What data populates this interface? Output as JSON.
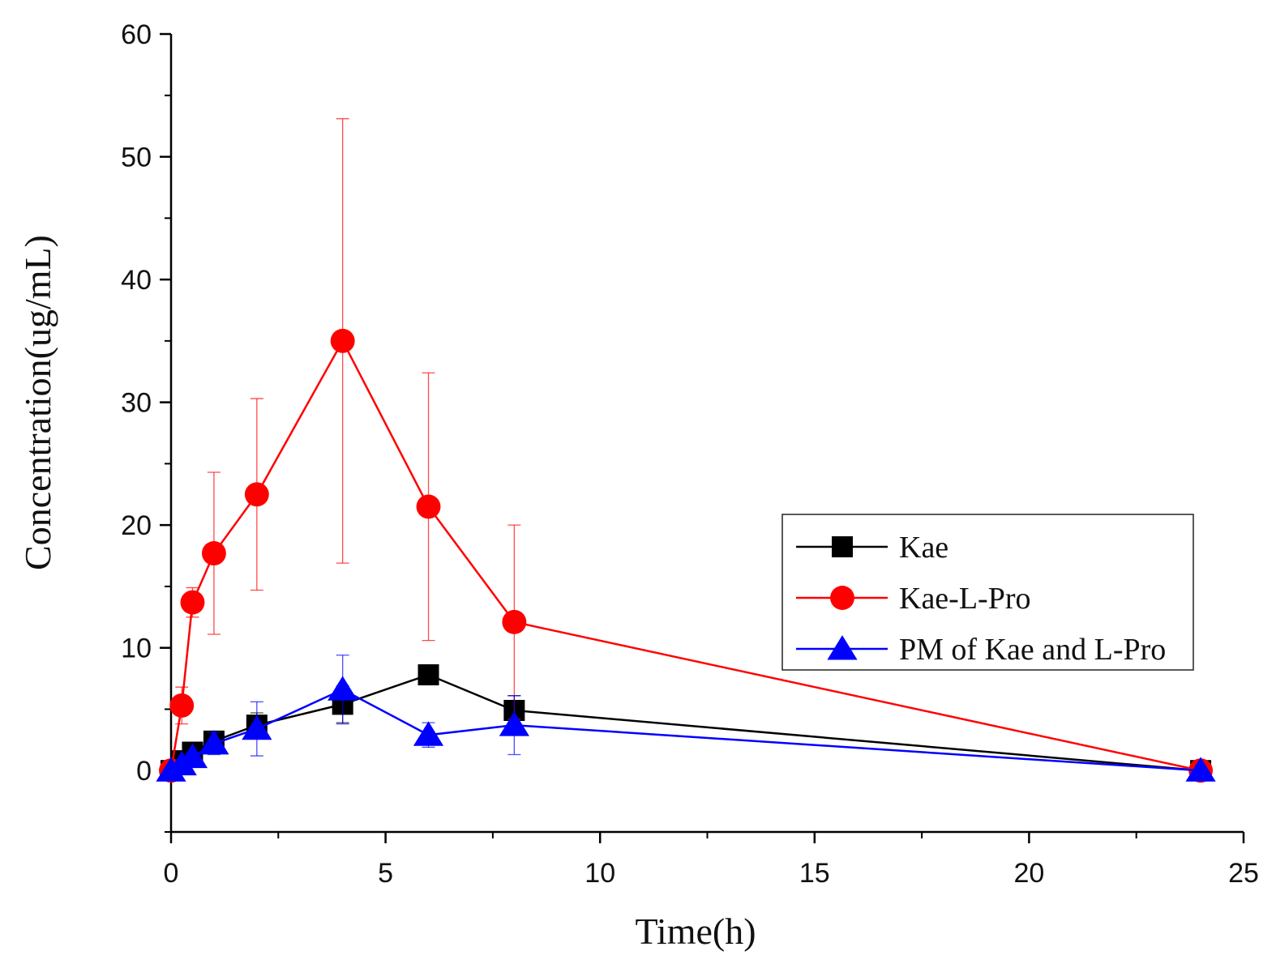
{
  "chart_data": {
    "type": "line",
    "title": "",
    "xlabel": "Time(h)",
    "ylabel": "Concentration(ug/mL)",
    "xlim": [
      0,
      25
    ],
    "ylim": [
      -5,
      60
    ],
    "x_ticks": [
      0,
      5,
      10,
      15,
      20,
      25
    ],
    "x_tick_labels": [
      "0",
      "5",
      "10",
      "15",
      "20",
      "25"
    ],
    "y_ticks": [
      0,
      10,
      20,
      30,
      40,
      50,
      60
    ],
    "y_tick_labels": [
      "0",
      "10",
      "20",
      "30",
      "40",
      "50",
      "60"
    ],
    "grid": false,
    "legend_position": "right",
    "series": [
      {
        "name": "Kae",
        "color": "#000000",
        "marker": "square",
        "x": [
          0,
          0.25,
          0.5,
          1,
          2,
          4,
          6,
          8,
          24
        ],
        "y": [
          0,
          0.8,
          1.5,
          2.4,
          3.7,
          5.4,
          7.8,
          4.9,
          0
        ],
        "err": [
          0,
          0.3,
          0.4,
          0.6,
          1.0,
          1.5,
          0.8,
          1.2,
          0
        ]
      },
      {
        "name": "Kae-L-Pro",
        "color": "#ff0000",
        "marker": "circle",
        "x": [
          0,
          0.25,
          0.5,
          1,
          2,
          4,
          6,
          8,
          24
        ],
        "y": [
          0,
          5.3,
          13.7,
          17.7,
          22.5,
          35.0,
          21.5,
          12.1,
          0
        ],
        "err": [
          0,
          1.5,
          1.2,
          6.6,
          7.8,
          18.1,
          10.9,
          7.9,
          0
        ]
      },
      {
        "name": "PM of Kae and L-Pro",
        "color": "#0000ff",
        "marker": "triangle",
        "x": [
          0,
          0.25,
          0.5,
          1,
          2,
          4,
          6,
          8,
          24
        ],
        "y": [
          0,
          0.5,
          1.1,
          2.2,
          3.4,
          6.6,
          2.9,
          3.7,
          0
        ],
        "err": [
          0,
          0.3,
          0.4,
          0.9,
          2.2,
          2.8,
          1.0,
          2.4,
          0
        ]
      }
    ]
  }
}
